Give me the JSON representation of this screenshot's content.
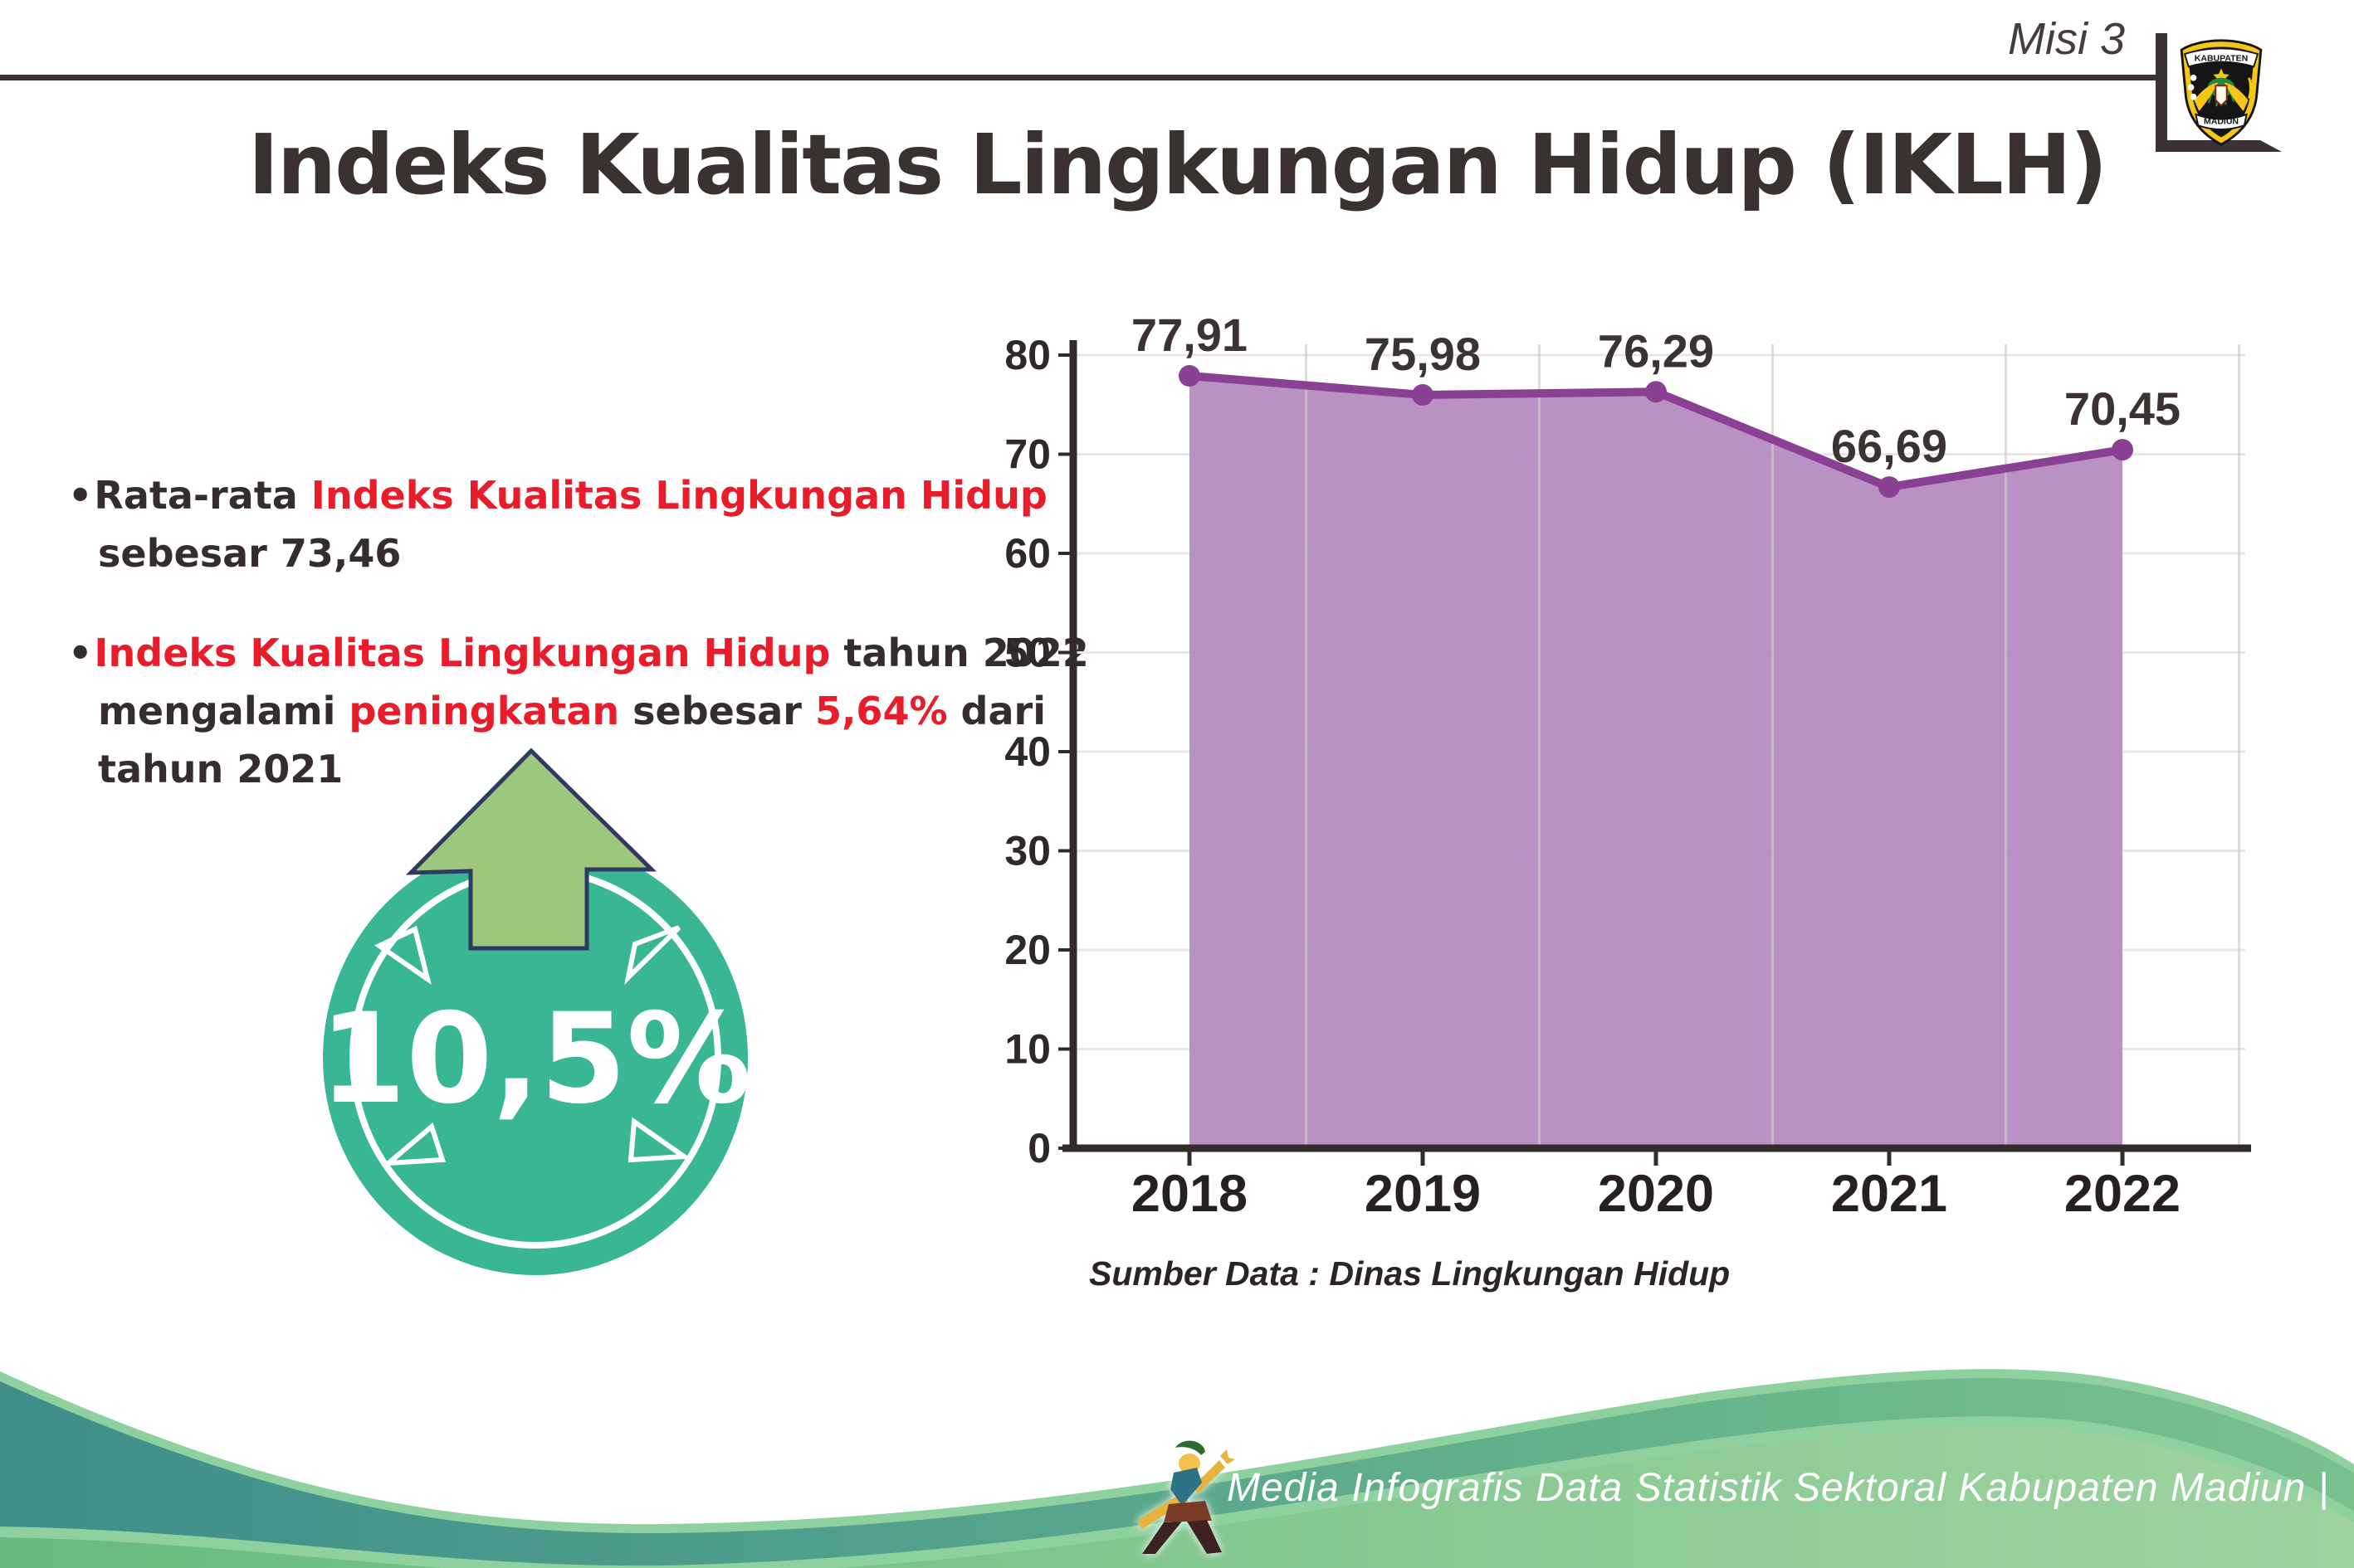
{
  "header": {
    "misi": "Misi 3",
    "title": "Indeks Kualitas Lingkungan Hidup (IKLH)"
  },
  "logo": {
    "top": "KABUPATEN",
    "bottom": "MADIUN"
  },
  "bullets": [
    {
      "lines": [
        [
          {
            "t": "Rata-rata ",
            "red": false
          },
          {
            "t": "Indeks Kualitas Lingkungan Hidup",
            "red": true
          }
        ],
        [
          {
            "t": "sebesar 73,46",
            "red": false
          }
        ]
      ]
    },
    {
      "lines": [
        [
          {
            "t": "Indeks Kualitas Lingkungan Hidup",
            "red": true
          },
          {
            "t": " tahun 2022",
            "red": false
          }
        ],
        [
          {
            "t": "mengalami ",
            "red": false
          },
          {
            "t": "peningkatan",
            "red": true
          },
          {
            "t": " sebesar ",
            "red": false
          },
          {
            "t": "5,64%",
            "red": true
          },
          {
            "t": " dari",
            "red": false
          }
        ],
        [
          {
            "t": "tahun 2021",
            "red": false
          }
        ]
      ]
    }
  ],
  "badge": {
    "value": "10,5%"
  },
  "chart_data": {
    "type": "area",
    "categories": [
      "2018",
      "2019",
      "2020",
      "2021",
      "2022"
    ],
    "values": [
      77.91,
      75.98,
      76.29,
      66.69,
      70.45
    ],
    "point_labels": [
      "77,91",
      "75,98",
      "76,29",
      "66,69",
      "70,45"
    ],
    "title": "",
    "xlabel": "",
    "ylabel": "",
    "ylim": [
      0,
      80
    ],
    "ytick_step": 10,
    "grid": true,
    "legend": "none"
  },
  "source_note": "Sumber Data : Dinas Lingkungan Hidup",
  "footer": {
    "credit": "Media Infografis Data Statistik Sektoral Kabupaten Madiun |"
  },
  "colors": {
    "accent_red": "#e81c2a",
    "text_dark": "#352d2d",
    "title_dark": "#3a3131",
    "purple_line": "#8a4193",
    "purple_fill": "#b58cc0",
    "grid_gray": "#e9e6e7",
    "axis_dark": "#332b2b",
    "badge_teal": "#39b795",
    "arrow_green": "#9dc77f",
    "arrow_outline": "#2e3a64",
    "footer_teal": "#3f8e8a",
    "footer_green": "#6fbc83",
    "footer_light_green": "#a9d8a8",
    "halo_green": "#8ed19e"
  }
}
